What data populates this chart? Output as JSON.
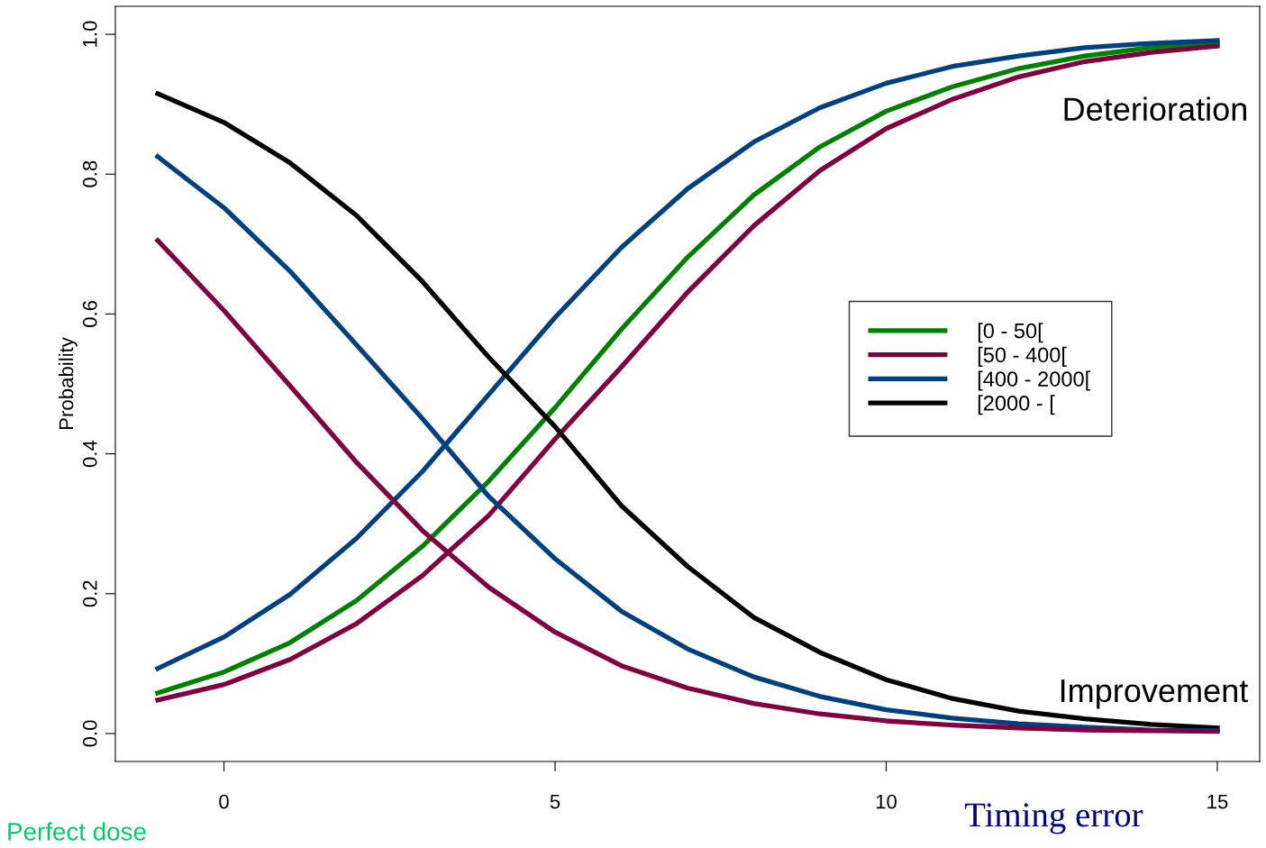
{
  "chart_data": {
    "type": "line",
    "xlabel": "Timing error",
    "ylabel": "Probability",
    "x": [
      -1,
      0,
      1,
      2,
      3,
      4,
      5,
      6,
      7,
      8,
      9,
      10,
      11,
      12,
      13,
      14,
      15
    ],
    "series": [
      {
        "name": "[0 - 50[",
        "color": "#008000",
        "values": [
          0.058,
          0.088,
          0.13,
          0.19,
          0.268,
          0.361,
          0.466,
          0.578,
          0.681,
          0.77,
          0.839,
          0.89,
          0.925,
          0.951,
          0.969,
          0.981,
          0.987
        ]
      },
      {
        "name": "[50 - 400[",
        "color": "#800040",
        "values": [
          0.048,
          0.07,
          0.106,
          0.157,
          0.226,
          0.312,
          0.421,
          0.524,
          0.631,
          0.726,
          0.805,
          0.865,
          0.907,
          0.939,
          0.961,
          0.974,
          0.983
        ]
      },
      {
        "name": "[400 - 2000[",
        "color": "#004080",
        "values": [
          0.093,
          0.138,
          0.199,
          0.279,
          0.375,
          0.485,
          0.595,
          0.695,
          0.779,
          0.846,
          0.895,
          0.93,
          0.954,
          0.969,
          0.981,
          0.987,
          0.991
        ]
      },
      {
        "name": "[2000 - [",
        "color": "#000000",
        "values": [
          0.915,
          0.874,
          0.816,
          0.741,
          0.646,
          0.538,
          0.439,
          0.326,
          0.239,
          0.166,
          0.116,
          0.077,
          0.05,
          0.032,
          0.021,
          0.013,
          0.008
        ]
      },
      {
        "color": "#004080",
        "values": [
          0.825,
          0.752,
          0.661,
          0.556,
          0.45,
          0.339,
          0.25,
          0.175,
          0.121,
          0.081,
          0.053,
          0.034,
          0.022,
          0.014,
          0.009,
          0.005,
          0.004
        ]
      },
      {
        "color": "#800040",
        "values": [
          0.705,
          0.605,
          0.497,
          0.388,
          0.29,
          0.209,
          0.145,
          0.097,
          0.065,
          0.043,
          0.028,
          0.018,
          0.012,
          0.008,
          0.005,
          0.004,
          0.003
        ]
      }
    ],
    "xlim": [
      -1.64,
      15.64
    ],
    "ylim": [
      -0.04,
      1.04
    ],
    "xticks": [
      0,
      5,
      10,
      15
    ],
    "yticks": [
      {
        "value": 0,
        "label": "0.0"
      },
      {
        "value": 0.2,
        "label": "0.2"
      },
      {
        "value": 0.4,
        "label": "0.4"
      },
      {
        "value": 0.6,
        "label": "0.6"
      },
      {
        "value": 0.8,
        "label": "0.8"
      },
      {
        "value": 1,
        "label": "1.0"
      }
    ],
    "legend": "right",
    "grid": false,
    "marker": "none",
    "line_style": "solid",
    "annotations": [
      "Deterioration",
      "Improvement",
      "Perfect dose"
    ]
  }
}
